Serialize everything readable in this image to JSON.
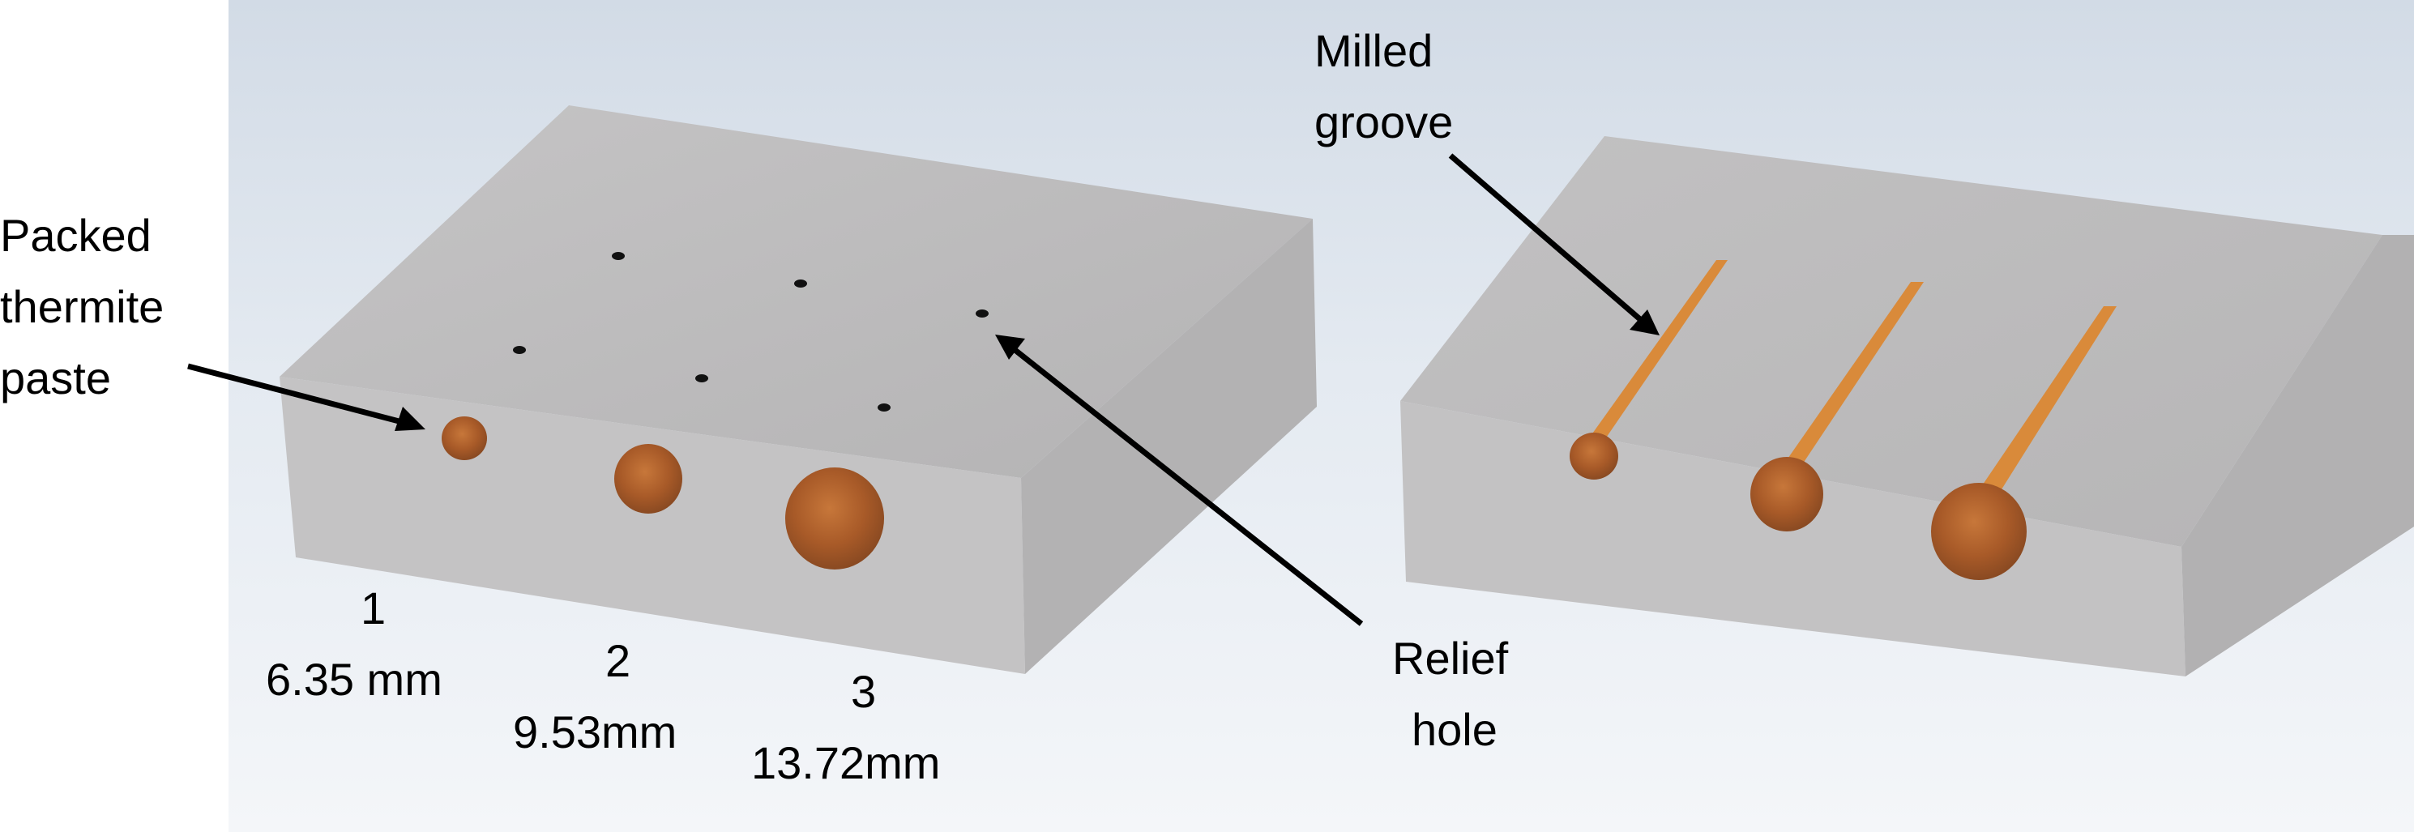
{
  "labels": {
    "packed_line1": "Packed",
    "packed_line2": "thermite",
    "packed_line3": "paste",
    "milled_line1": "Milled",
    "milled_line2": "groove",
    "relief_line1": "Relief",
    "relief_line2": "hole",
    "hole1_num": "1",
    "hole1_size": "6.35 mm",
    "hole2_num": "2",
    "hole2_size": "9.53mm",
    "hole3_num": "3",
    "hole3_size": "13.72mm"
  },
  "colors": {
    "block_top": "#bab9ba",
    "block_front": "#c3c2c3",
    "block_side": "#b2b1b2",
    "thermite": "#b5652d",
    "groove": "#d98a3a",
    "arrow": "#000000"
  }
}
